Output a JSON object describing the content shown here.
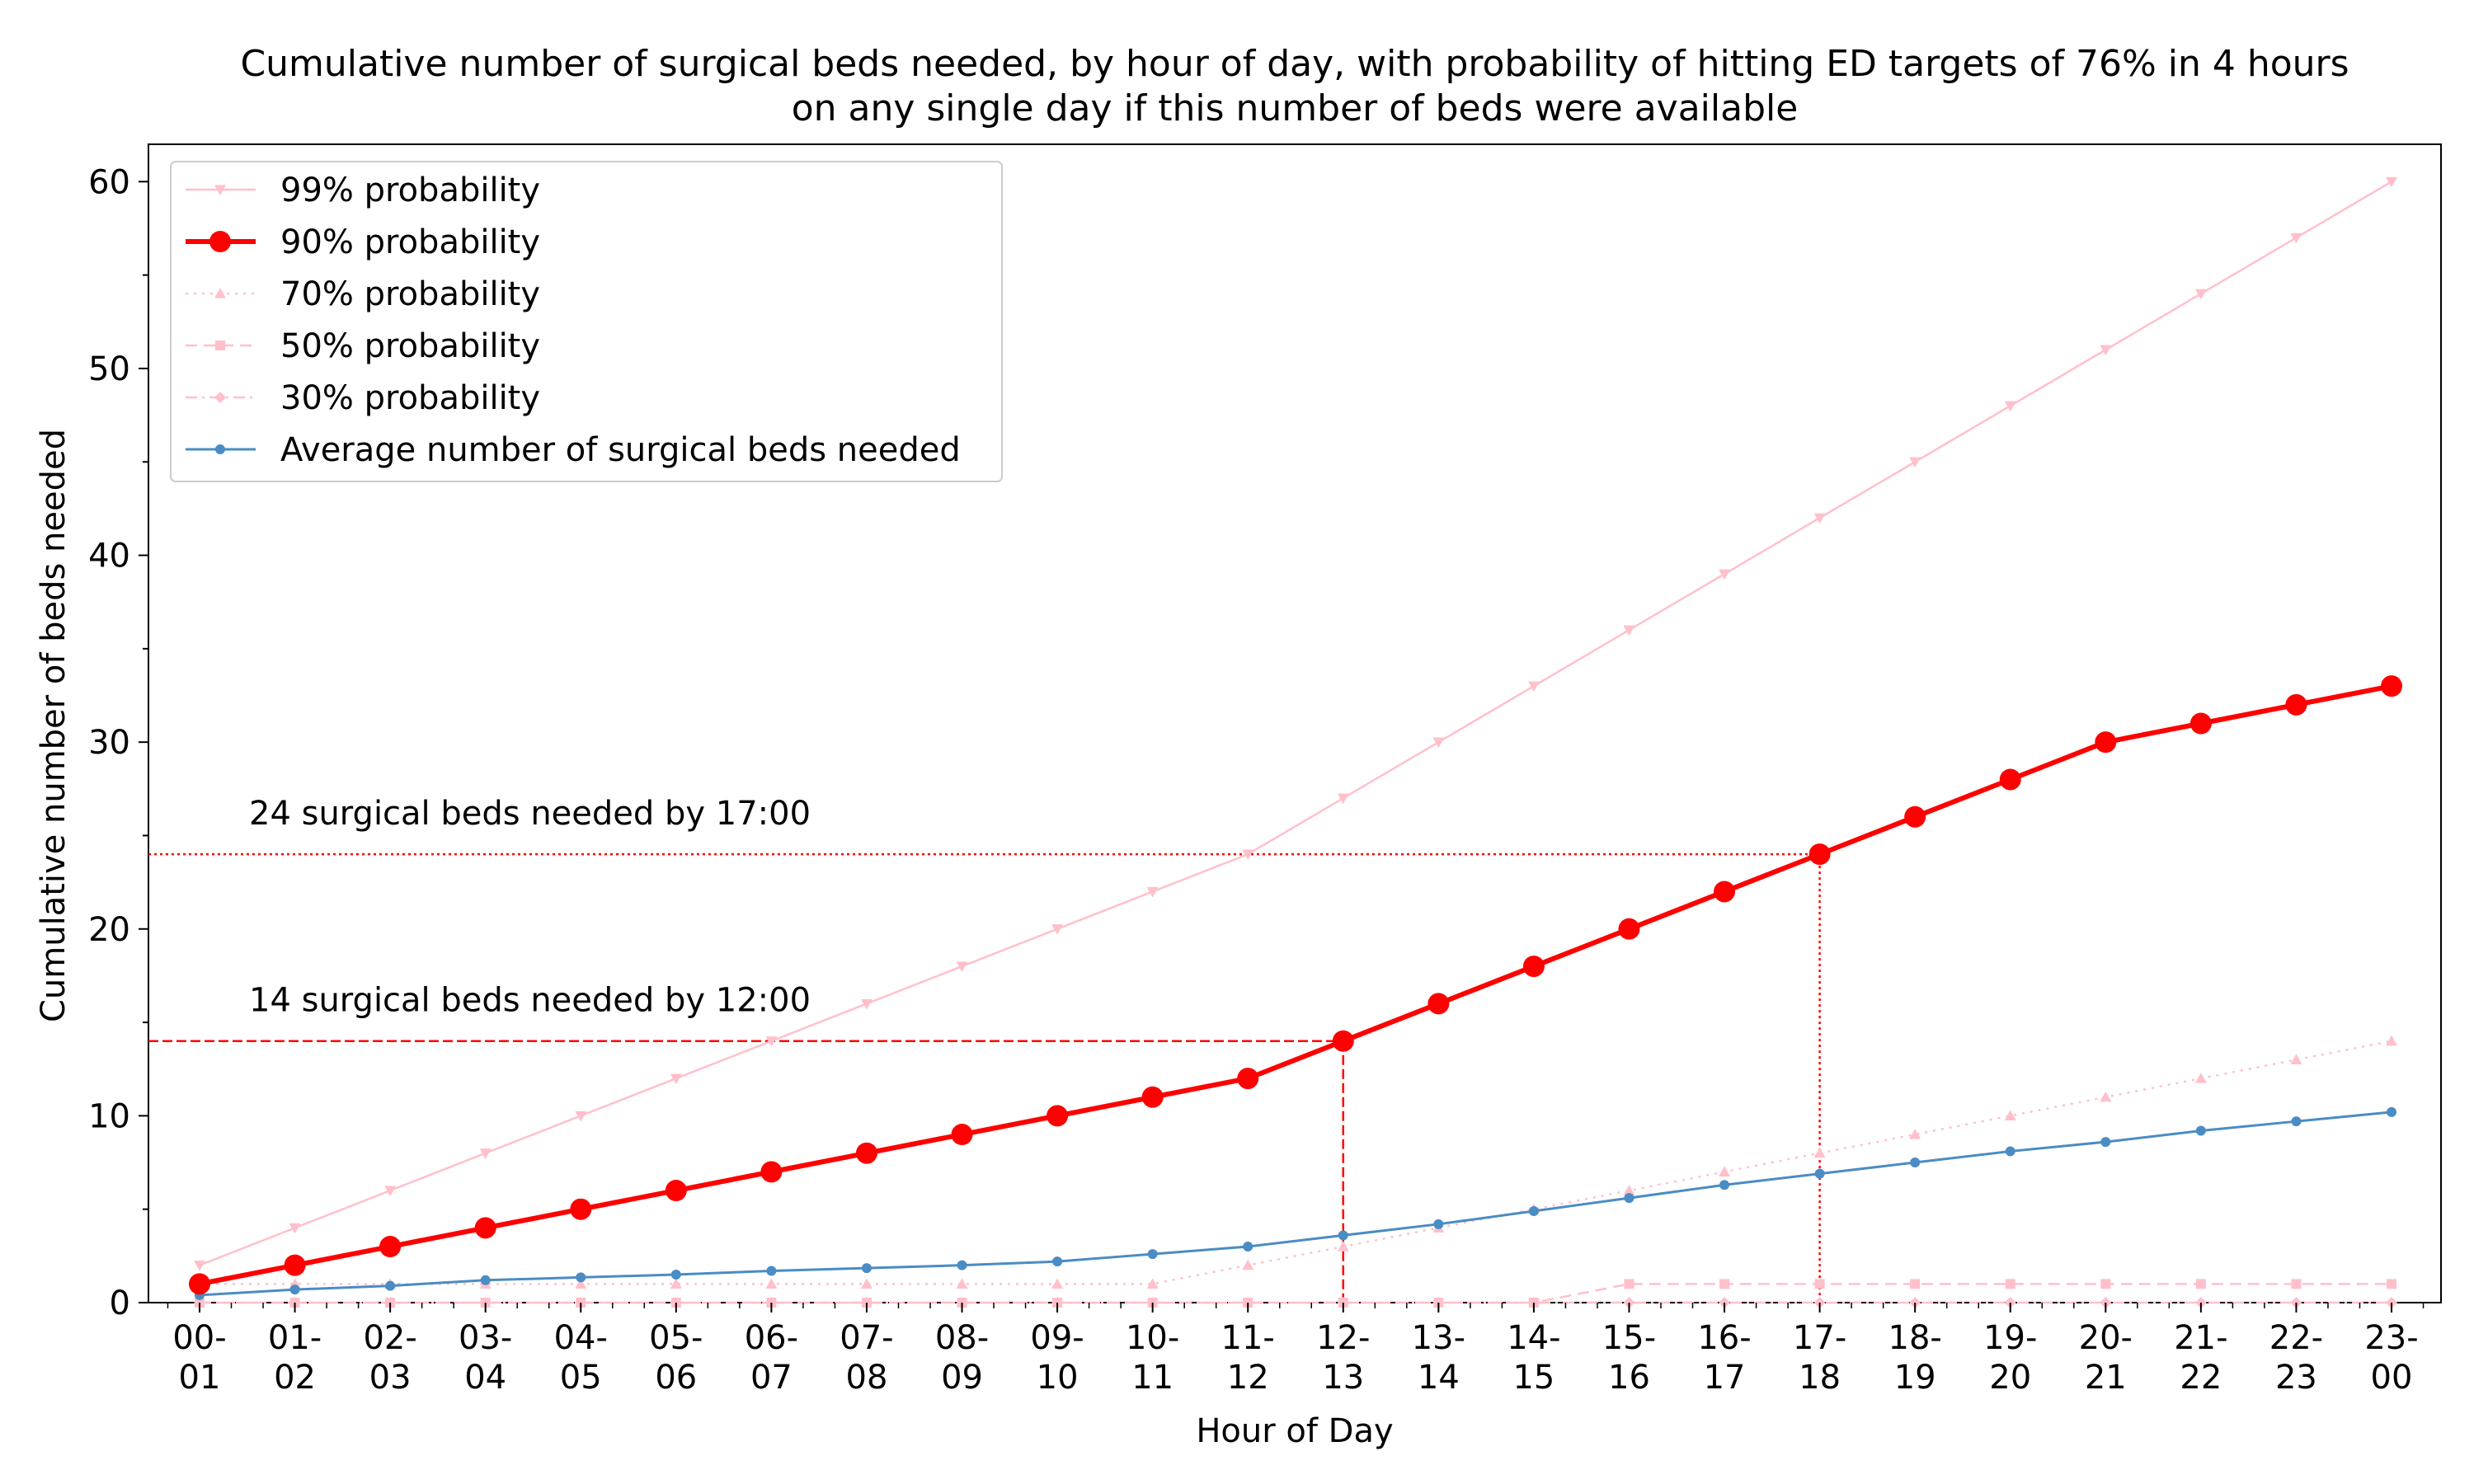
{
  "chart_data": {
    "type": "line",
    "title": [
      "Cumulative number of surgical beds needed, by hour of day, with probability of hitting ED targets of 76% in 4 hours",
      "on any single day if this number of beds were available"
    ],
    "xlabel": "Hour of Day",
    "ylabel": "Cumulative number of beds needed",
    "ylim": [
      0,
      62
    ],
    "yticks": [
      0,
      10,
      20,
      30,
      40,
      50,
      60
    ],
    "grid": false,
    "legend_position": "top-left",
    "categories": [
      [
        "00-",
        "01"
      ],
      [
        "01-",
        "02"
      ],
      [
        "02-",
        "03"
      ],
      [
        "03-",
        "04"
      ],
      [
        "04-",
        "05"
      ],
      [
        "05-",
        "06"
      ],
      [
        "06-",
        "07"
      ],
      [
        "07-",
        "08"
      ],
      [
        "08-",
        "09"
      ],
      [
        "09-",
        "10"
      ],
      [
        "10-",
        "11"
      ],
      [
        "11-",
        "12"
      ],
      [
        "12-",
        "13"
      ],
      [
        "13-",
        "14"
      ],
      [
        "14-",
        "15"
      ],
      [
        "15-",
        "16"
      ],
      [
        "16-",
        "17"
      ],
      [
        "17-",
        "18"
      ],
      [
        "18-",
        "19"
      ],
      [
        "19-",
        "20"
      ],
      [
        "20-",
        "21"
      ],
      [
        "21-",
        "22"
      ],
      [
        "22-",
        "23"
      ],
      [
        "23-",
        "00"
      ]
    ],
    "series": [
      {
        "name": "99% probability",
        "color": "#ffc0cb",
        "width": 2.5,
        "dash": "",
        "marker": "triangle-down",
        "marker_size": 7,
        "values": [
          2,
          4,
          6,
          8,
          10,
          12,
          14,
          16,
          18,
          20,
          22,
          24,
          27,
          30,
          33,
          36,
          39,
          42,
          45,
          48,
          51,
          54,
          57,
          60
        ]
      },
      {
        "name": "90% probability",
        "color": "#ff0000",
        "width": 6,
        "dash": "",
        "marker": "circle",
        "marker_size": 13,
        "values": [
          1,
          2,
          3,
          4,
          5,
          6,
          7,
          8,
          9,
          10,
          11,
          12,
          14,
          16,
          18,
          20,
          22,
          24,
          26,
          28,
          30,
          31,
          32,
          33
        ]
      },
      {
        "name": "70% probability",
        "color": "#ffc0cb",
        "width": 2.5,
        "dash": "3 7",
        "marker": "triangle-up",
        "marker_size": 7,
        "values": [
          1,
          1,
          1,
          1,
          1,
          1,
          1,
          1,
          1,
          1,
          1,
          2,
          3,
          4,
          5,
          6,
          7,
          8,
          9,
          10,
          11,
          12,
          13,
          14
        ]
      },
      {
        "name": "50% probability",
        "color": "#ffc0cb",
        "width": 2.5,
        "dash": "14 8",
        "marker": "square",
        "marker_size": 6,
        "values": [
          0,
          0,
          0,
          0,
          0,
          0,
          0,
          0,
          0,
          0,
          0,
          0,
          0,
          0,
          0,
          1,
          1,
          1,
          1,
          1,
          1,
          1,
          1,
          1
        ]
      },
      {
        "name": "30% probability",
        "color": "#ffc0cb",
        "width": 2.5,
        "dash": "14 6 3 6",
        "marker": "diamond",
        "marker_size": 7,
        "values": [
          0,
          0,
          0,
          0,
          0,
          0,
          0,
          0,
          0,
          0,
          0,
          0,
          0,
          0,
          0,
          0,
          0,
          0,
          0,
          0,
          0,
          0,
          0,
          0
        ]
      },
      {
        "name": "Average number of surgical beds needed",
        "color": "#4a8cc4",
        "width": 3,
        "dash": "",
        "marker": "circle",
        "marker_size": 6,
        "values": [
          0.4,
          0.7,
          0.9,
          1.2,
          1.35,
          1.5,
          1.7,
          1.85,
          2.0,
          2.2,
          2.6,
          3.0,
          3.6,
          4.2,
          4.9,
          5.6,
          6.3,
          6.9,
          7.5,
          8.1,
          8.6,
          9.2,
          9.7,
          10.2
        ]
      }
    ],
    "annotations": [
      {
        "text": "24 surgical beds needed by 17:00",
        "value": 24,
        "x_index": 17,
        "dash": "3 4"
      },
      {
        "text": "14 surgical beds needed by 12:00",
        "value": 14,
        "x_index": 12,
        "dash": "12 5"
      }
    ]
  }
}
